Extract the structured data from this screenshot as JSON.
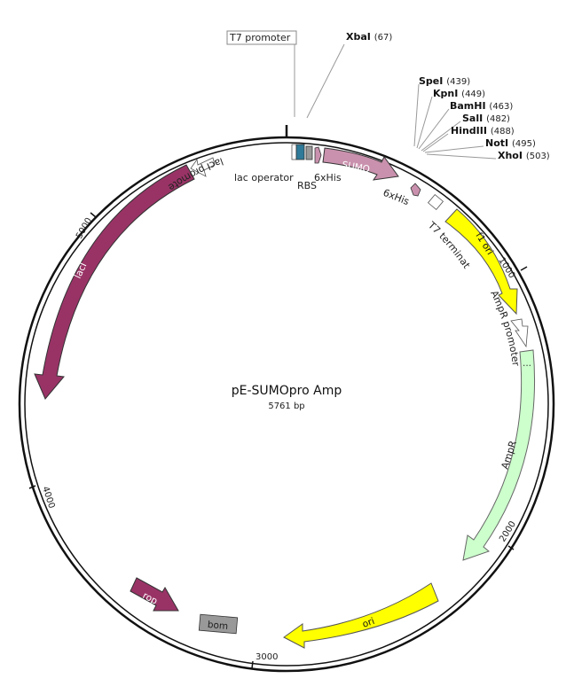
{
  "plasmid": {
    "name": "pE-SUMOpro Amp",
    "size_label": "5761 bp"
  },
  "t7_promoter_label": "T7 promoter",
  "restriction_sites": [
    {
      "name": "XbaI",
      "position": "(67)"
    },
    {
      "name": "SpeI",
      "position": "(439)"
    },
    {
      "name": "KpnI",
      "position": "(449)"
    },
    {
      "name": "BamHI",
      "position": "(463)"
    },
    {
      "name": "SalI",
      "position": "(482)"
    },
    {
      "name": "HindIII",
      "position": "(488)"
    },
    {
      "name": "NotI",
      "position": "(495)"
    },
    {
      "name": "XhoI",
      "position": "(503)"
    }
  ],
  "features": {
    "lac_operator": "lac operator",
    "rbs": "RBS",
    "his_tag_1": "6xHis",
    "sumo": "SUMO",
    "his_tag_2": "6xHis",
    "t7_terminator": "T7 terminator",
    "f1_ori": "f1 ori",
    "ampr_promoter": "AmpR promoter",
    "ampr": "AmpR",
    "ori": "ori",
    "bom": "bom",
    "rop": "rop",
    "laci": "lacI",
    "laci_promoter": "lacI promoter"
  },
  "ticks": {
    "t1000": "1000",
    "t2000": "2000",
    "t3000": "3000",
    "t4000": "4000",
    "t5000": "5000"
  },
  "colors": {
    "sumo": "#c991ad",
    "f1_ori": "#ffff00",
    "ampr": "#ccffcc",
    "ori": "#ffff00",
    "laci": "#993366",
    "rop": "#993366",
    "bom": "#999999",
    "lac_operator": "#2e7a98",
    "rbs": "#999999"
  }
}
